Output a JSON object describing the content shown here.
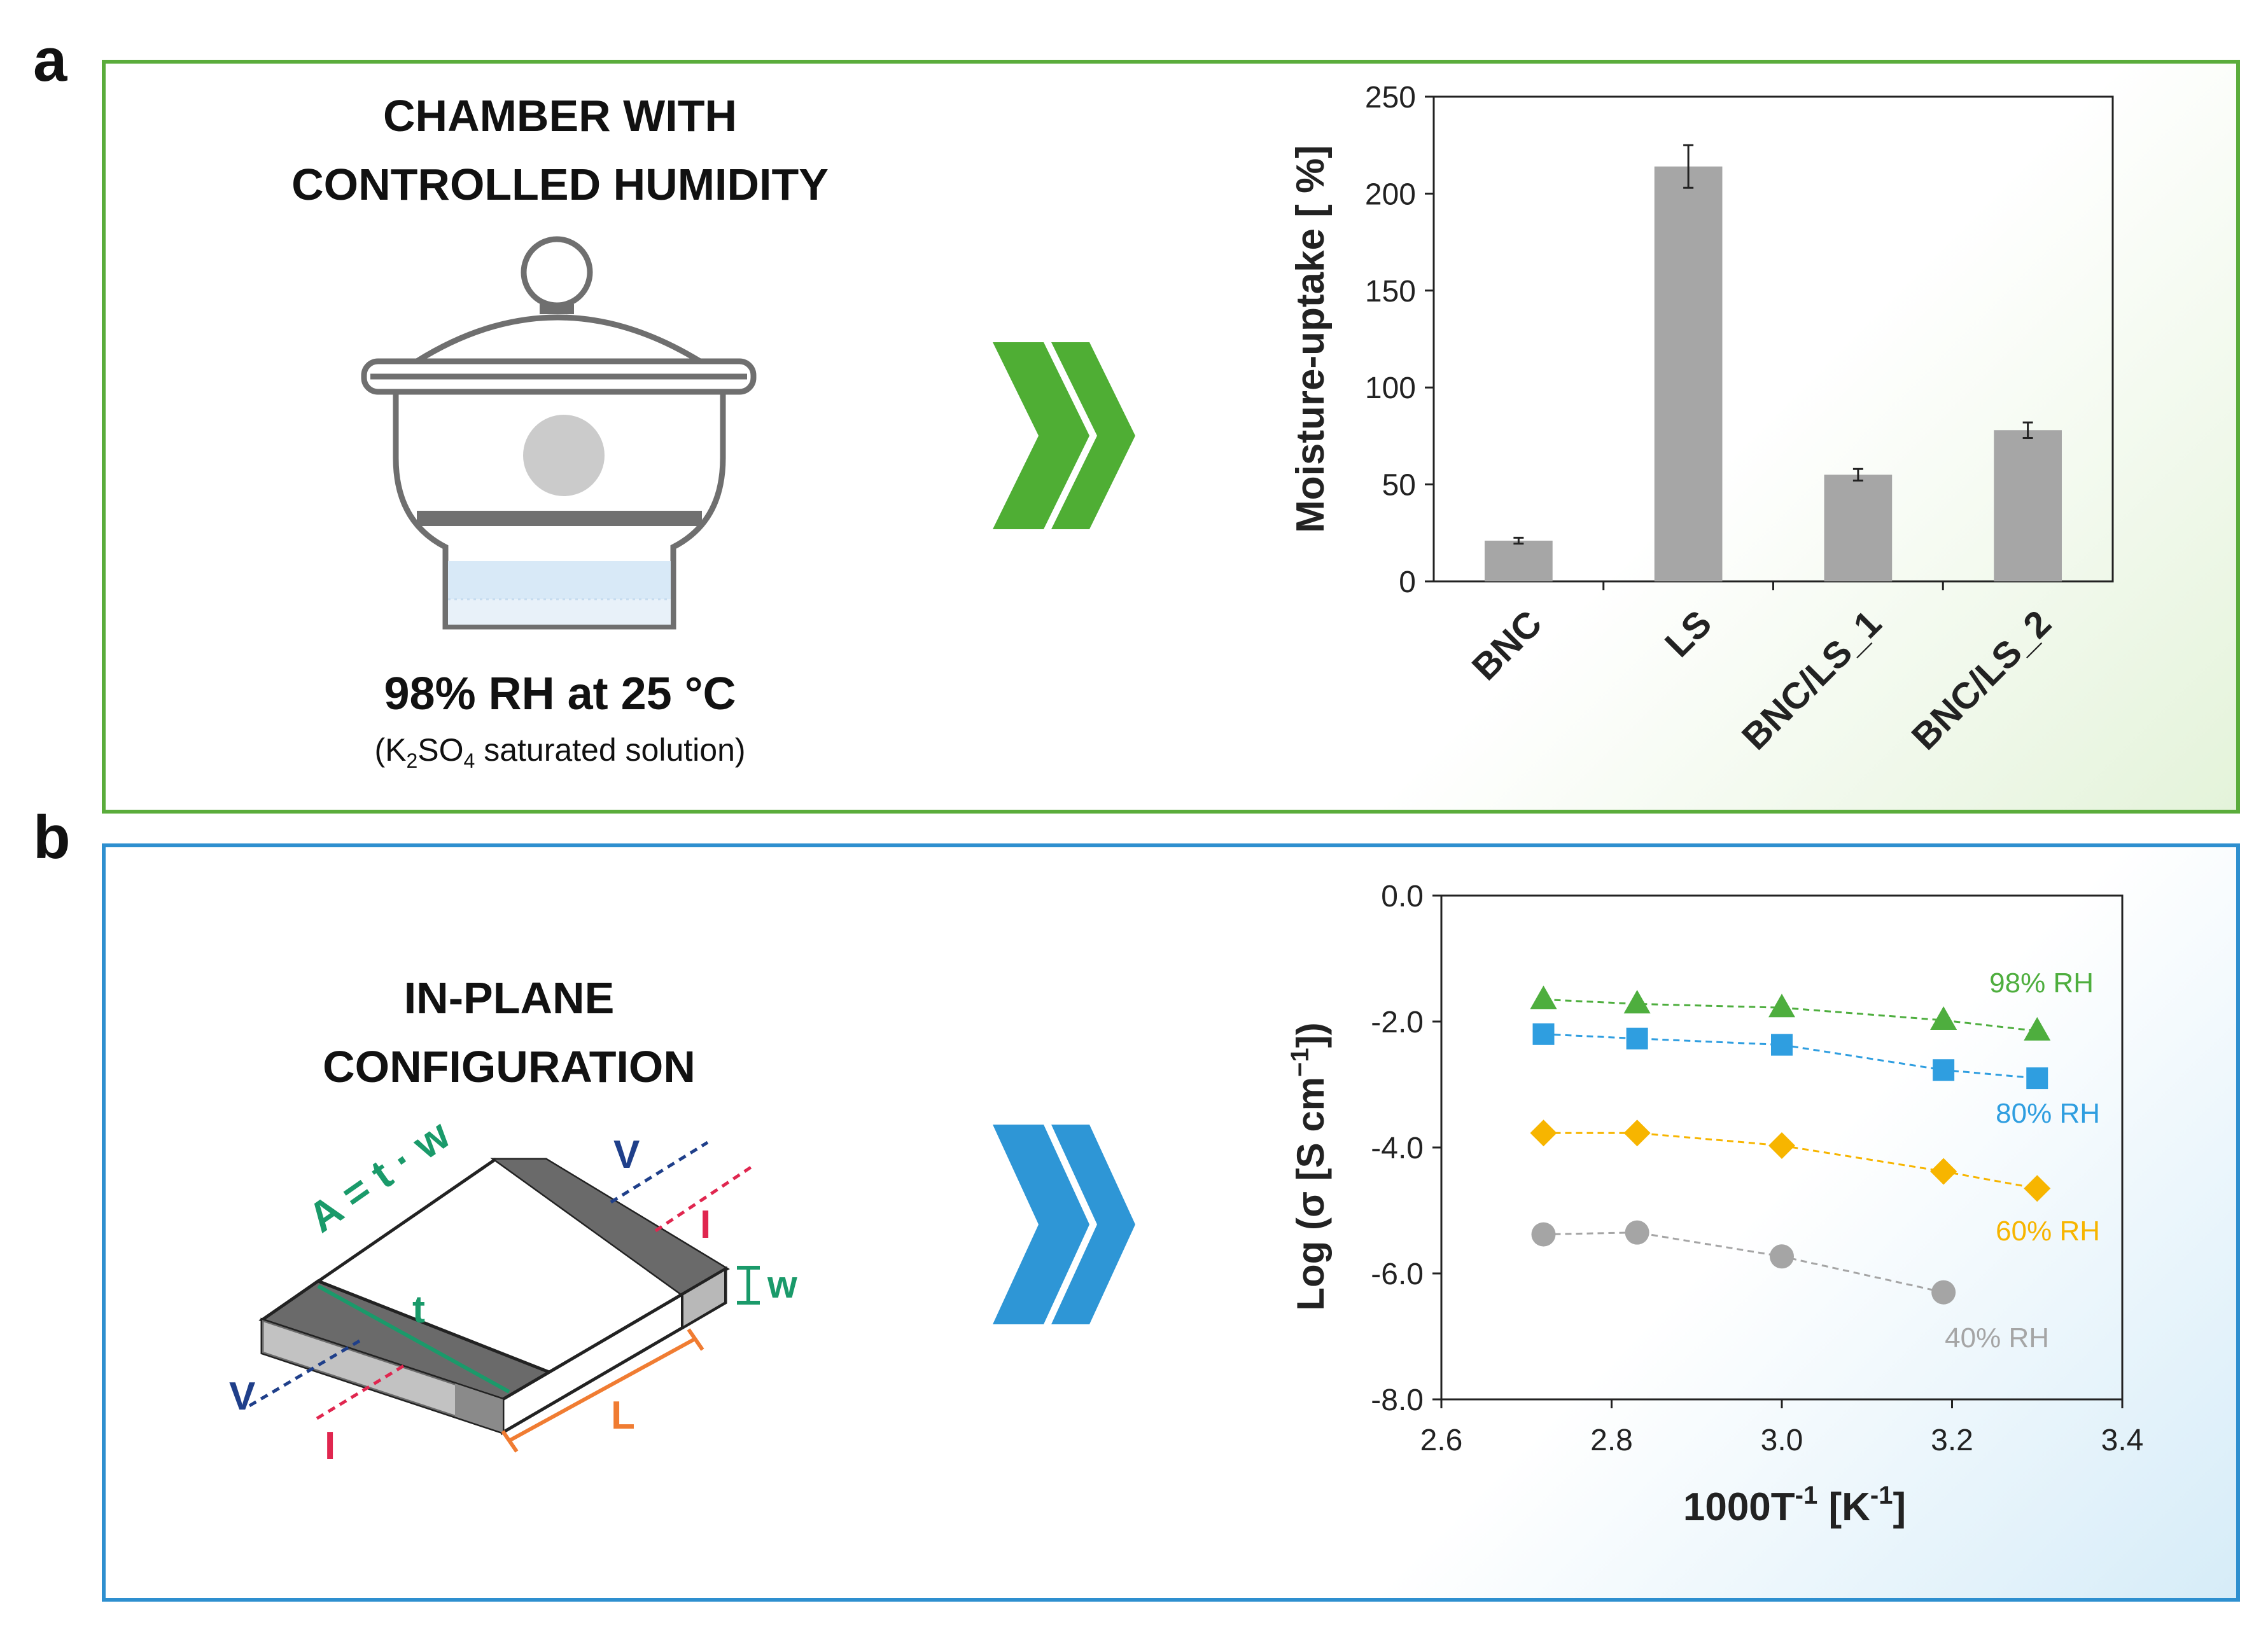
{
  "panel_a": {
    "letter": "a",
    "heading": [
      "CHAMBER WITH",
      "CONTROLLED HUMIDITY"
    ],
    "condition": "98% RH at 25 °C",
    "solution": {
      "open": "(K",
      "k_sub": "2",
      "so": "SO",
      "so_sub": "4",
      "rest": " saturated solution)"
    }
  },
  "panel_b": {
    "letter": "b",
    "heading": [
      "IN-PLANE",
      "CONFIGURATION"
    ],
    "schematic": {
      "area_label": "A = t · w",
      "t": "t",
      "w": "w",
      "L": "L",
      "V": "V",
      "I": "I"
    }
  },
  "colors": {
    "green": "#5aac3b",
    "blue": "#2e8fcf",
    "bar": "#a6a6a6",
    "rh98": "#4eae3e",
    "rh80": "#2f9ee0",
    "rh60": "#f7b500",
    "rh40": "#a5a5a5",
    "v_color": "#1f3f8a",
    "i_color": "#e0264f",
    "area_color": "#1a9a6a",
    "l_color": "#f07c32"
  },
  "chart_data": [
    {
      "type": "bar",
      "title": "",
      "categories": [
        "BNC",
        "LS",
        "BNC/LS_1",
        "BNC/LS_2"
      ],
      "values": [
        21,
        214,
        55,
        78
      ],
      "errors": [
        1.5,
        11,
        3,
        4
      ],
      "ylabel": "Moisture-uptake [ %]",
      "xlabel": "",
      "ylim": [
        0,
        250
      ],
      "yticks": [
        0,
        50,
        100,
        150,
        200,
        250
      ]
    },
    {
      "type": "line",
      "xlabel": {
        "base": "1000T",
        "sup1": "-1",
        "mid": " [K",
        "sup2": "-1",
        "end": "]"
      },
      "ylabel": {
        "pre": "Log (σ [S cm",
        "sup": "−1",
        "post": "])"
      },
      "xlim": [
        2.6,
        3.4
      ],
      "ylim": [
        -8.0,
        0.0
      ],
      "xticks": [
        "2.6",
        "2.8",
        "3.0",
        "3.2",
        "3.4"
      ],
      "yticks": [
        "0.0",
        "-2.0",
        "-4.0",
        "-6.0",
        "-8.0"
      ],
      "series": [
        {
          "name": "98% RH",
          "marker": "triangle",
          "x": [
            2.72,
            2.83,
            3.0,
            3.19,
            3.3
          ],
          "y": [
            -1.65,
            -1.72,
            -1.78,
            -1.98,
            -2.15
          ]
        },
        {
          "name": "80% RH",
          "marker": "square",
          "x": [
            2.72,
            2.83,
            3.0,
            3.19,
            3.3
          ],
          "y": [
            -2.2,
            -2.27,
            -2.37,
            -2.77,
            -2.9
          ]
        },
        {
          "name": "60% RH",
          "marker": "diamond",
          "x": [
            2.72,
            2.83,
            3.0,
            3.19,
            3.3
          ],
          "y": [
            -3.77,
            -3.77,
            -3.97,
            -4.38,
            -4.65
          ]
        },
        {
          "name": "40% RH",
          "marker": "circle",
          "x": [
            2.72,
            2.83,
            3.0,
            3.19
          ],
          "y": [
            -5.38,
            -5.35,
            -5.73,
            -6.3
          ]
        }
      ]
    }
  ]
}
